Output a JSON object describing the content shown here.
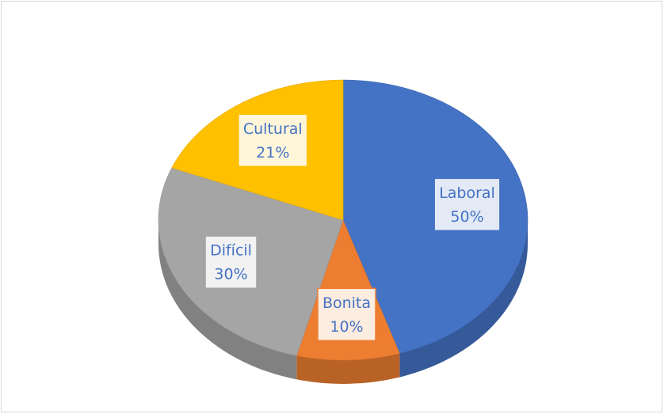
{
  "chart_data": {
    "type": "pie",
    "categories": [
      "Laboral",
      "Bonita",
      "Difícil",
      "Cultural"
    ],
    "values": [
      50,
      10,
      30,
      21
    ],
    "value_labels": [
      "50%",
      "10%",
      "30%",
      "21%"
    ],
    "colors": [
      "#4472c4",
      "#ed7d31",
      "#a5a5a5",
      "#ffc000"
    ]
  }
}
